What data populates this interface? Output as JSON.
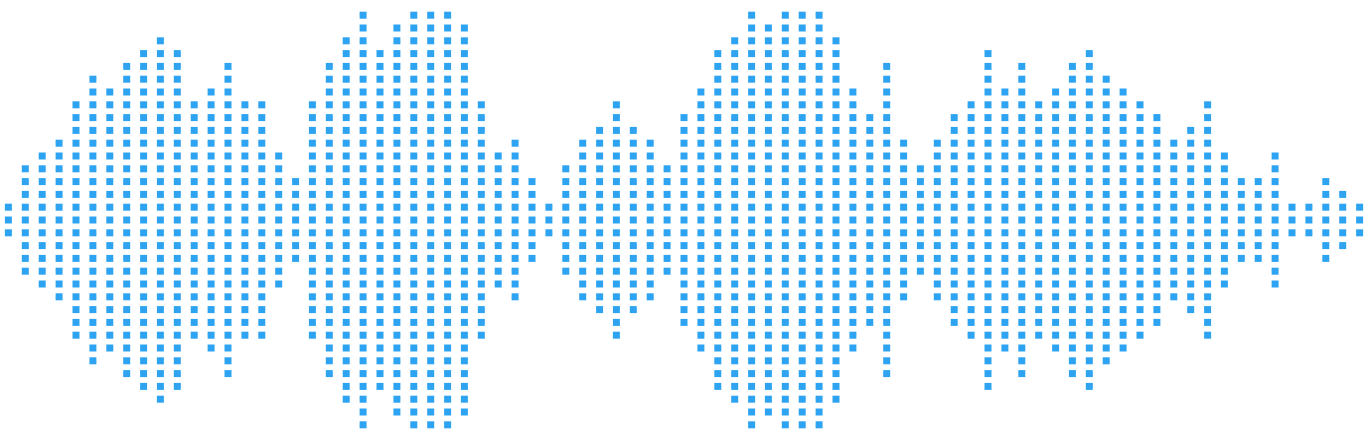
{
  "waveform": {
    "color": "#2ea3f2",
    "background": "#ffffff",
    "column_count": 81,
    "column_amplitudes": [
      1,
      4,
      5,
      6,
      9,
      11,
      10,
      12,
      13,
      14,
      13,
      9,
      10,
      12,
      9,
      9,
      5,
      3,
      9,
      12,
      14,
      16,
      13,
      15,
      16,
      17,
      17,
      15,
      9,
      5,
      6,
      3,
      1,
      4,
      6,
      7,
      9,
      7,
      6,
      4,
      8,
      10,
      13,
      14,
      16,
      15,
      16,
      17,
      16,
      14,
      10,
      8,
      12,
      6,
      4,
      6,
      8,
      9,
      13,
      10,
      12,
      9,
      10,
      12,
      13,
      11,
      10,
      9,
      8,
      6,
      7,
      9,
      5,
      3,
      3,
      5,
      1,
      1,
      3,
      2,
      1
    ]
  }
}
